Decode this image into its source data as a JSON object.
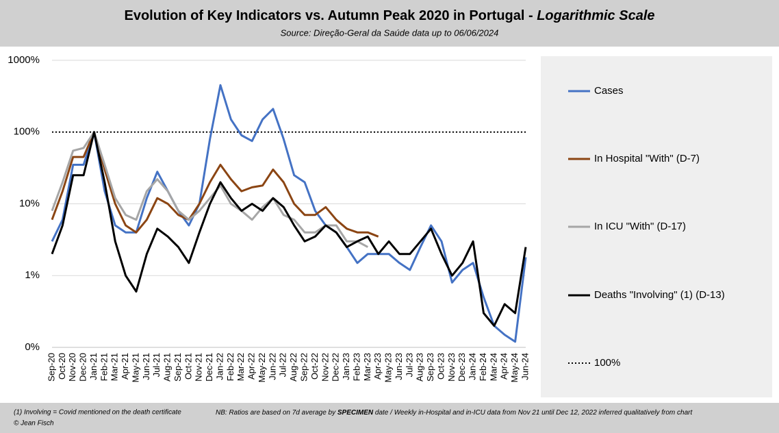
{
  "chart_data": {
    "type": "line",
    "title": "Evolution of Key Indicators vs. Autumn Peak 2020 in Portugal - ",
    "title_emphasis": "Logarithmic Scale",
    "subtitle": "Source: Direção-Geral da Saúde data up to 06/06/2024",
    "log_scale": true,
    "categories": [
      "Sep-20",
      "Oct-20",
      "Nov-20",
      "Dec-20",
      "Jan-21",
      "Feb-21",
      "Mar-21",
      "Apr-21",
      "May-21",
      "Jun-21",
      "Jul-21",
      "Aug-21",
      "Sep-21",
      "Oct-21",
      "Nov-21",
      "Dec-21",
      "Jan-22",
      "Feb-22",
      "Mar-22",
      "Apr-22",
      "May-22",
      "Jun-22",
      "Jul-22",
      "Aug-22",
      "Sep-22",
      "Oct-22",
      "Nov-22",
      "Dec-22",
      "Jan-23",
      "Feb-23",
      "Mar-23",
      "Apr-23",
      "May-23",
      "Jun-23",
      "Jul-23",
      "Aug-23",
      "Sep-23",
      "Oct-23",
      "Nov-23",
      "Dec-23",
      "Jan-24",
      "Feb-24",
      "Mar-24",
      "Apr-24",
      "May-24",
      "Jun-24"
    ],
    "series": [
      {
        "name": "Cases",
        "color": "#4472c4",
        "values": [
          3,
          6,
          35,
          35,
          100,
          15,
          5,
          4,
          4,
          12,
          28,
          15,
          8,
          5,
          10,
          80,
          450,
          150,
          90,
          75,
          150,
          210,
          80,
          25,
          20,
          8,
          5,
          4,
          2.5,
          1.5,
          2,
          2,
          2,
          1.5,
          1.2,
          2.5,
          5,
          3,
          0.8,
          1.2,
          1.5,
          0.5,
          0.2,
          0.15,
          0.12,
          1.8
        ]
      },
      {
        "name": "In Hospital \"With\" (D-7)",
        "color": "#8b4513",
        "values": [
          6,
          15,
          45,
          45,
          100,
          30,
          10,
          5,
          4,
          6,
          12,
          10,
          7,
          6,
          10,
          20,
          35,
          22,
          15,
          17,
          18,
          30,
          20,
          10,
          7,
          7,
          9,
          6,
          4.5,
          4,
          4,
          3.5,
          null,
          null,
          null,
          null,
          null,
          null,
          null,
          null,
          null,
          null,
          null,
          null,
          null,
          null
        ]
      },
      {
        "name": "In ICU \"With\" (D-17)",
        "color": "#a6a6a6",
        "values": [
          8,
          20,
          55,
          60,
          100,
          35,
          12,
          7,
          6,
          15,
          22,
          15,
          8,
          6,
          8,
          12,
          18,
          10,
          8,
          6,
          9,
          12,
          7,
          6,
          4,
          4,
          5,
          5,
          3,
          3,
          2.5,
          null,
          null,
          null,
          null,
          null,
          null,
          null,
          null,
          null,
          null,
          null,
          null,
          null,
          null,
          null
        ]
      },
      {
        "name": "Deaths \"Involving\" (1) (D-13)",
        "color": "#000000",
        "values": [
          2,
          5,
          25,
          25,
          100,
          20,
          3,
          1,
          0.6,
          2,
          4.5,
          3.5,
          2.5,
          1.5,
          4,
          10,
          20,
          12,
          8,
          10,
          8,
          12,
          9,
          5,
          3,
          3.5,
          5,
          4,
          2.5,
          3,
          3.5,
          2,
          3,
          2,
          2,
          3,
          4.5,
          2,
          1,
          1.5,
          3,
          0.3,
          0.2,
          0.4,
          0.3,
          2.5
        ]
      }
    ],
    "reference_line": {
      "name": "100%",
      "value": 100,
      "color": "#000000"
    },
    "ylim": [
      0.1,
      1000
    ],
    "yticks": [
      {
        "value": 0.1,
        "label": "0%"
      },
      {
        "value": 1,
        "label": "1%"
      },
      {
        "value": 10,
        "label": "10%"
      },
      {
        "value": 100,
        "label": "100%"
      },
      {
        "value": 1000,
        "label": "1000%"
      }
    ],
    "grid": true,
    "legend": "right",
    "notes": [
      "(1) Involving = Covid mentioned on the death certificate",
      "© Jean Fisch"
    ],
    "nb_note": [
      "NB: Ratios are based on 7d average by ",
      "SPECIMEN",
      " date / Weekly in-Hospital and in-ICU data from Nov 21 until Dec 12, 2022 inferred qualitatively from chart"
    ]
  }
}
